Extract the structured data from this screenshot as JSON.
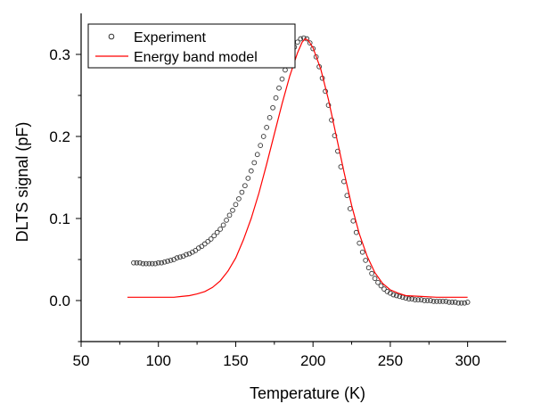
{
  "chart_data": {
    "type": "line",
    "xlabel": "Temperature (K)",
    "ylabel": "DLTS signal (pF)",
    "xlim": [
      50,
      325
    ],
    "ylim": [
      -0.05,
      0.35
    ],
    "x_ticks": [
      50,
      100,
      150,
      200,
      250,
      300
    ],
    "y_ticks": [
      0.0,
      0.1,
      0.2,
      0.3
    ],
    "x_tick_labels": [
      "50",
      "100",
      "150",
      "200",
      "250",
      "300"
    ],
    "y_tick_labels": [
      "0.0",
      "0.1",
      "0.2",
      "0.3"
    ],
    "grid": false,
    "legend_position": "top-left",
    "series": [
      {
        "name": "Experiment",
        "style": "open-circle-markers",
        "color": "#333333",
        "points": [
          [
            84,
            0.046
          ],
          [
            86,
            0.046
          ],
          [
            88,
            0.046
          ],
          [
            90,
            0.045
          ],
          [
            92,
            0.045
          ],
          [
            94,
            0.045
          ],
          [
            96,
            0.045
          ],
          [
            98,
            0.045
          ],
          [
            100,
            0.046
          ],
          [
            102,
            0.046
          ],
          [
            104,
            0.047
          ],
          [
            106,
            0.048
          ],
          [
            108,
            0.049
          ],
          [
            110,
            0.05
          ],
          [
            112,
            0.052
          ],
          [
            114,
            0.053
          ],
          [
            116,
            0.054
          ],
          [
            118,
            0.056
          ],
          [
            120,
            0.057
          ],
          [
            122,
            0.059
          ],
          [
            124,
            0.061
          ],
          [
            126,
            0.064
          ],
          [
            128,
            0.066
          ],
          [
            130,
            0.069
          ],
          [
            132,
            0.072
          ],
          [
            134,
            0.075
          ],
          [
            136,
            0.079
          ],
          [
            138,
            0.083
          ],
          [
            140,
            0.087
          ],
          [
            142,
            0.092
          ],
          [
            144,
            0.098
          ],
          [
            146,
            0.104
          ],
          [
            148,
            0.11
          ],
          [
            150,
            0.117
          ],
          [
            152,
            0.124
          ],
          [
            154,
            0.132
          ],
          [
            156,
            0.14
          ],
          [
            158,
            0.149
          ],
          [
            160,
            0.158
          ],
          [
            162,
            0.168
          ],
          [
            164,
            0.178
          ],
          [
            166,
            0.189
          ],
          [
            168,
            0.2
          ],
          [
            170,
            0.211
          ],
          [
            172,
            0.223
          ],
          [
            174,
            0.235
          ],
          [
            176,
            0.247
          ],
          [
            178,
            0.259
          ],
          [
            180,
            0.27
          ],
          [
            182,
            0.281
          ],
          [
            184,
            0.292
          ],
          [
            186,
            0.301
          ],
          [
            188,
            0.309
          ],
          [
            190,
            0.315
          ],
          [
            192,
            0.319
          ],
          [
            194,
            0.32
          ],
          [
            196,
            0.319
          ],
          [
            198,
            0.314
          ],
          [
            200,
            0.307
          ],
          [
            202,
            0.297
          ],
          [
            204,
            0.285
          ],
          [
            206,
            0.271
          ],
          [
            208,
            0.255
          ],
          [
            210,
            0.238
          ],
          [
            212,
            0.22
          ],
          [
            214,
            0.201
          ],
          [
            216,
            0.182
          ],
          [
            218,
            0.163
          ],
          [
            220,
            0.145
          ],
          [
            222,
            0.128
          ],
          [
            224,
            0.112
          ],
          [
            226,
            0.097
          ],
          [
            228,
            0.083
          ],
          [
            230,
            0.07
          ],
          [
            232,
            0.059
          ],
          [
            234,
            0.049
          ],
          [
            236,
            0.04
          ],
          [
            238,
            0.033
          ],
          [
            240,
            0.027
          ],
          [
            242,
            0.022
          ],
          [
            244,
            0.018
          ],
          [
            246,
            0.014
          ],
          [
            248,
            0.011
          ],
          [
            250,
            0.009
          ],
          [
            252,
            0.007
          ],
          [
            254,
            0.006
          ],
          [
            256,
            0.005
          ],
          [
            258,
            0.004
          ],
          [
            260,
            0.003
          ],
          [
            262,
            0.002
          ],
          [
            264,
            0.002
          ],
          [
            266,
            0.001
          ],
          [
            268,
            0.001
          ],
          [
            270,
            0.001
          ],
          [
            272,
            0.0
          ],
          [
            274,
            0.0
          ],
          [
            276,
            0.0
          ],
          [
            278,
            -0.001
          ],
          [
            280,
            -0.001
          ],
          [
            282,
            -0.001
          ],
          [
            284,
            -0.001
          ],
          [
            286,
            -0.001
          ],
          [
            288,
            -0.002
          ],
          [
            290,
            -0.002
          ],
          [
            292,
            -0.002
          ],
          [
            294,
            -0.003
          ],
          [
            296,
            -0.003
          ],
          [
            298,
            -0.003
          ],
          [
            300,
            -0.002
          ]
        ]
      },
      {
        "name": "Energy band model",
        "style": "line",
        "color": "#ff0000",
        "points": [
          [
            80,
            0.004
          ],
          [
            100,
            0.004
          ],
          [
            110,
            0.004
          ],
          [
            115,
            0.005
          ],
          [
            120,
            0.006
          ],
          [
            125,
            0.008
          ],
          [
            130,
            0.011
          ],
          [
            135,
            0.016
          ],
          [
            140,
            0.024
          ],
          [
            145,
            0.036
          ],
          [
            150,
            0.052
          ],
          [
            155,
            0.074
          ],
          [
            160,
            0.1
          ],
          [
            165,
            0.131
          ],
          [
            170,
            0.166
          ],
          [
            175,
            0.203
          ],
          [
            180,
            0.24
          ],
          [
            185,
            0.274
          ],
          [
            190,
            0.302
          ],
          [
            193,
            0.315
          ],
          [
            195,
            0.319
          ],
          [
            197,
            0.317
          ],
          [
            200,
            0.308
          ],
          [
            205,
            0.282
          ],
          [
            210,
            0.245
          ],
          [
            215,
            0.201
          ],
          [
            220,
            0.157
          ],
          [
            225,
            0.116
          ],
          [
            230,
            0.081
          ],
          [
            235,
            0.054
          ],
          [
            240,
            0.034
          ],
          [
            245,
            0.021
          ],
          [
            250,
            0.013
          ],
          [
            255,
            0.009
          ],
          [
            260,
            0.006
          ],
          [
            270,
            0.005
          ],
          [
            280,
            0.004
          ],
          [
            290,
            0.004
          ],
          [
            300,
            0.004
          ]
        ]
      }
    ]
  }
}
